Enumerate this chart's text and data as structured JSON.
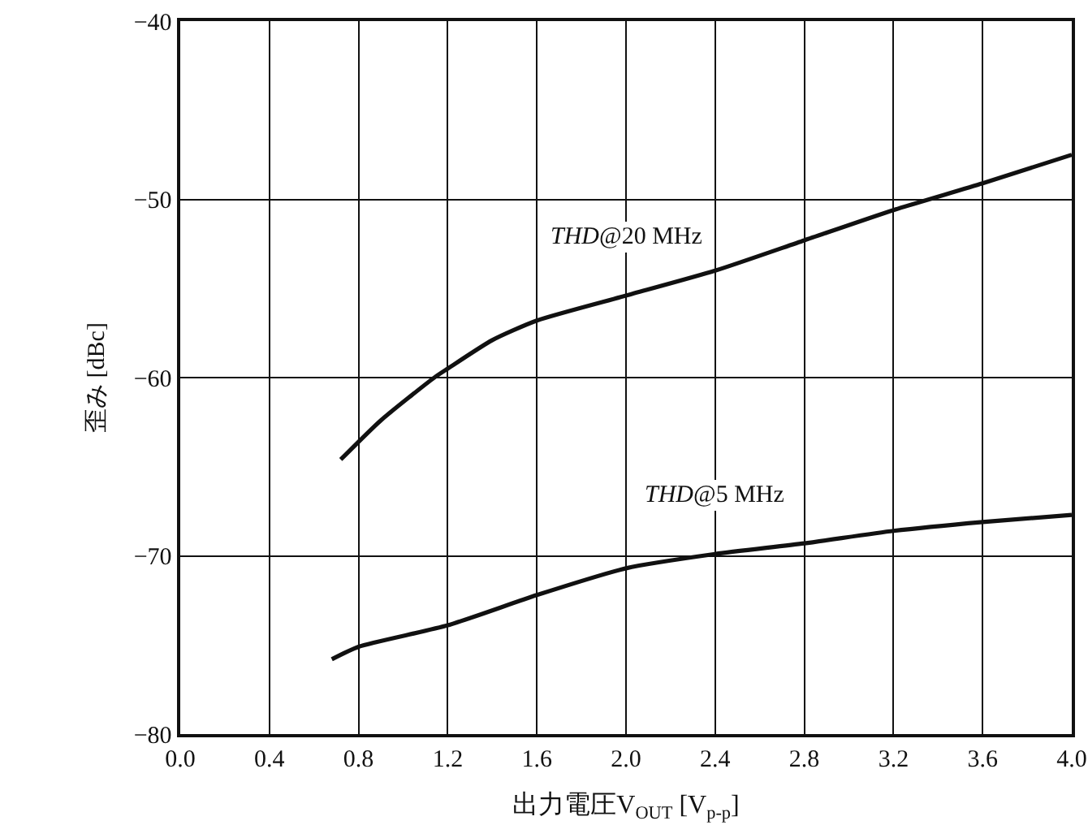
{
  "chart_data": {
    "type": "line",
    "xlabel": "出力電圧V$_{OUT}$ [V$_{p-p}$]",
    "ylabel": "歪み [dBc]",
    "series": [
      {
        "name": "THD@20 MHz",
        "color": "#111111",
        "x": [
          0.72,
          0.9,
          1.14,
          1.2,
          1.4,
          1.6,
          2.0,
          2.4,
          2.8,
          3.2,
          3.6,
          4.0
        ],
        "values": [
          -64.6,
          -62.4,
          -60.0,
          -59.5,
          -57.9,
          -56.8,
          -55.4,
          -54.0,
          -52.3,
          -50.6,
          -49.1,
          -47.5
        ]
      },
      {
        "name": "THD@5 MHz",
        "color": "#111111",
        "x": [
          0.68,
          0.8,
          1.2,
          1.6,
          2.0,
          2.4,
          2.8,
          3.2,
          3.6,
          4.0
        ],
        "values": [
          -75.8,
          -75.1,
          -73.9,
          -72.2,
          -70.7,
          -69.9,
          -69.3,
          -68.6,
          -68.1,
          -67.7
        ]
      }
    ],
    "xlim": [
      0,
      4.0
    ],
    "xticks": [
      {
        "value": 0,
        "label": "0.0"
      },
      0.4,
      0.8,
      1.2,
      1.6,
      {
        "value": 2,
        "label": "2.0"
      },
      2.4,
      2.8,
      3.2,
      3.6,
      {
        "value": 4,
        "label": "4.0"
      }
    ],
    "ylim": [
      -80,
      -40
    ],
    "yticks": [
      -80,
      -70,
      -60,
      -50,
      -40
    ],
    "grid": true,
    "line_style": "solid",
    "marker": "none"
  }
}
